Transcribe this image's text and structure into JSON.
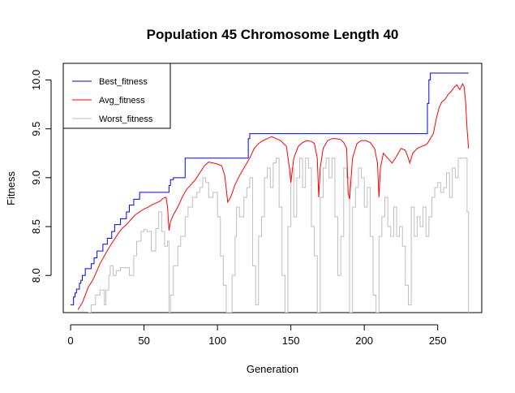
{
  "chart_data": {
    "type": "line",
    "title": "Population 45  Chromosome Length 40",
    "xlabel": "Generation",
    "ylabel": "Fitness",
    "xlim": [
      -5,
      280
    ],
    "ylim": [
      7.62,
      10.17
    ],
    "xticks": [
      0,
      50,
      100,
      150,
      200,
      250
    ],
    "yticks": [
      8.0,
      8.5,
      9.0,
      9.5,
      10.0
    ],
    "xtick_labels": [
      "0",
      "50",
      "100",
      "150",
      "200",
      "250"
    ],
    "ytick_labels": [
      "8.0",
      "8.5",
      "9.0",
      "9.5",
      "10.0"
    ],
    "grid": false,
    "legend_position": "top-left",
    "series": [
      {
        "name": "Best_fitness",
        "color": "#0000ff",
        "step": true,
        "x": [
          0,
          2,
          3,
          4,
          6,
          7,
          8,
          10,
          12,
          14,
          16,
          18,
          22,
          25,
          28,
          30,
          34,
          38,
          40,
          43,
          47,
          57,
          67,
          68,
          70,
          78,
          121,
          122,
          243,
          244,
          245,
          271
        ],
        "y": [
          7.7,
          7.78,
          7.82,
          7.86,
          7.92,
          7.95,
          8.0,
          8.07,
          8.07,
          8.12,
          8.18,
          8.25,
          8.32,
          8.38,
          8.45,
          8.52,
          8.58,
          8.65,
          8.72,
          8.78,
          8.85,
          8.85,
          8.92,
          8.98,
          9.0,
          9.2,
          9.4,
          9.45,
          9.76,
          10.0,
          10.07,
          10.07
        ]
      },
      {
        "name": "Avg_fitness",
        "color": "#ff0000",
        "step": false,
        "x": [
          5,
          8,
          10,
          12,
          15,
          18,
          20,
          23,
          26,
          29,
          32,
          35,
          38,
          41,
          44,
          47,
          50,
          53,
          55,
          58,
          61,
          63,
          65,
          66,
          67,
          68,
          70,
          73,
          76,
          79,
          82,
          85,
          88,
          91,
          94,
          97,
          100,
          103,
          105,
          107,
          109,
          112,
          115,
          118,
          120,
          122,
          125,
          128,
          131,
          134,
          137,
          140,
          143,
          145,
          147,
          149,
          150,
          152,
          155,
          158,
          161,
          164,
          166,
          168,
          169,
          170,
          172,
          175,
          178,
          181,
          184,
          186,
          188,
          189,
          190,
          192,
          195,
          198,
          201,
          204,
          207,
          209,
          210,
          211,
          213,
          216,
          219,
          222,
          225,
          228,
          230,
          231,
          233,
          236,
          239,
          241,
          243,
          245,
          247,
          249,
          251,
          253,
          255,
          257,
          259,
          261,
          263,
          265,
          267,
          268,
          269,
          270,
          271
        ],
        "y": [
          7.65,
          7.72,
          7.8,
          7.88,
          7.95,
          8.05,
          8.12,
          8.2,
          8.28,
          8.35,
          8.42,
          8.48,
          8.52,
          8.57,
          8.62,
          8.65,
          8.68,
          8.7,
          8.72,
          8.74,
          8.76,
          8.79,
          8.8,
          8.7,
          8.46,
          8.55,
          8.62,
          8.7,
          8.8,
          8.88,
          8.93,
          8.98,
          9.05,
          9.12,
          9.16,
          9.15,
          9.14,
          9.12,
          9.02,
          8.75,
          8.8,
          8.93,
          9.02,
          9.1,
          9.15,
          9.2,
          9.3,
          9.35,
          9.38,
          9.4,
          9.42,
          9.4,
          9.38,
          9.35,
          9.32,
          9.1,
          8.95,
          9.2,
          9.32,
          9.36,
          9.38,
          9.37,
          9.35,
          9.2,
          8.8,
          9.1,
          9.3,
          9.38,
          9.4,
          9.4,
          9.39,
          9.36,
          9.3,
          8.85,
          8.78,
          9.2,
          9.35,
          9.38,
          9.38,
          9.36,
          9.3,
          9.15,
          8.8,
          9.1,
          9.25,
          9.2,
          9.15,
          9.22,
          9.3,
          9.28,
          9.2,
          9.15,
          9.25,
          9.3,
          9.32,
          9.33,
          9.35,
          9.4,
          9.45,
          9.6,
          9.72,
          9.78,
          9.8,
          9.85,
          9.88,
          9.92,
          9.95,
          9.9,
          9.96,
          9.93,
          9.78,
          9.5,
          9.3
        ]
      },
      {
        "name": "Worst_fitness",
        "color": "#bebebe",
        "step": true,
        "x": [
          12,
          14,
          17,
          20,
          23,
          24,
          26,
          27,
          29,
          31,
          34,
          38,
          40,
          43,
          45,
          48,
          50,
          52,
          55,
          58,
          60,
          62,
          64,
          66,
          67,
          68,
          70,
          73,
          75,
          78,
          80,
          83,
          86,
          88,
          90,
          92,
          94,
          97,
          100,
          102,
          104,
          106,
          108,
          110,
          112,
          113,
          115,
          118,
          120,
          122,
          124,
          126,
          128,
          130,
          132,
          134,
          136,
          138,
          140,
          142,
          144,
          146,
          148,
          150,
          152,
          154,
          156,
          158,
          160,
          162,
          164,
          166,
          168,
          170,
          172,
          174,
          176,
          178,
          180,
          182,
          184,
          186,
          188,
          190,
          192,
          194,
          196,
          198,
          200,
          202,
          204,
          206,
          208,
          210,
          212,
          214,
          216,
          218,
          220,
          222,
          224,
          226,
          228,
          230,
          232,
          234,
          236,
          238,
          240,
          242,
          244,
          246,
          248,
          250,
          252,
          254,
          256,
          258,
          260,
          262,
          264,
          266,
          268,
          270,
          271
        ],
        "y": [
          7.62,
          7.7,
          7.8,
          7.85,
          7.7,
          7.85,
          8.0,
          8.1,
          8.0,
          8.05,
          8.08,
          8.08,
          8.0,
          8.2,
          8.35,
          8.45,
          8.47,
          8.45,
          8.25,
          8.48,
          8.65,
          8.45,
          8.3,
          8.35,
          7.62,
          7.8,
          8.1,
          8.3,
          8.4,
          8.6,
          8.7,
          8.8,
          8.85,
          8.9,
          9.0,
          8.95,
          8.8,
          8.85,
          8.6,
          8.2,
          7.9,
          7.62,
          7.62,
          8.0,
          8.4,
          8.7,
          8.6,
          8.8,
          8.9,
          9.0,
          8.1,
          7.7,
          8.4,
          8.6,
          9.0,
          9.1,
          8.9,
          9.15,
          9.2,
          8.7,
          8.0,
          7.62,
          8.5,
          9.1,
          8.6,
          9.0,
          9.2,
          8.9,
          9.2,
          9.1,
          8.5,
          8.2,
          7.62,
          8.8,
          9.1,
          9.2,
          9.0,
          9.2,
          8.6,
          8.0,
          8.4,
          9.1,
          9.0,
          7.62,
          8.7,
          8.9,
          9.1,
          9.0,
          8.7,
          8.9,
          8.4,
          7.8,
          7.62,
          8.4,
          8.6,
          8.8,
          8.5,
          8.4,
          8.7,
          8.4,
          8.5,
          8.3,
          7.9,
          7.7,
          8.7,
          8.4,
          8.6,
          8.5,
          8.7,
          8.4,
          8.6,
          8.8,
          8.9,
          8.95,
          8.85,
          8.9,
          9.05,
          8.8,
          9.1,
          9.0,
          9.2,
          9.2,
          9.2,
          8.65,
          7.62
        ]
      }
    ]
  }
}
